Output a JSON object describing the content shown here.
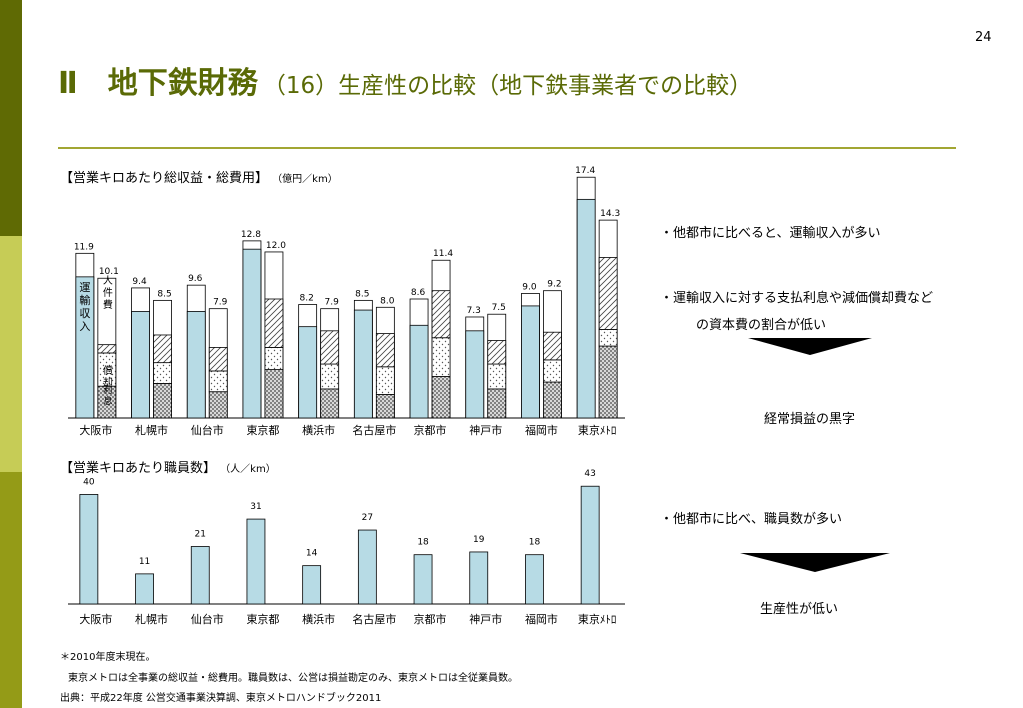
{
  "colors": {
    "sidebar": [
      "#5f6a04",
      "#c6cc56",
      "#949b17"
    ],
    "title": "#5a6a06",
    "rule": "#a2a632",
    "revenue_fill": "#b7dbe5",
    "bar_stroke": "#000000",
    "arrow": "#000000"
  },
  "slide": {
    "page_number": "24",
    "title_main": "Ⅱ　地下鉄財務",
    "title_sub": "（16）生産性の比較（地下鉄事業者での比較）"
  },
  "section1": {
    "title": "【営業キロあたり総収益・総費用】",
    "unit": "（億円／km）"
  },
  "section2": {
    "title": "【営業キロあたり職員数】",
    "unit": "（人／km）"
  },
  "notes": {
    "n1": "・他都市に比べると、運輸収入が多い",
    "n2a": "・運輸収入に対する支払利息や減価償却費など",
    "n2b": "の資本費の割合が低い",
    "r1": "経常損益の黒字",
    "n3": "・他都市に比べ、職員数が多い",
    "r2": "生産性が低い"
  },
  "footnotes": {
    "f1": "＊2010年度末現在。",
    "f2": "東京メトロは全事業の総収益・総費用。職員数は、公営は損益勘定のみ、東京メトロは全従業員数。",
    "f3": "出典：平成22年度 公営交通事業決算調、東京メトロハンドブック2011"
  },
  "chart_data": [
    {
      "type": "bar",
      "categories": [
        "大阪市",
        "札幌市",
        "仙台市",
        "東京都",
        "横浜市",
        "名古屋市",
        "京都市",
        "神戸市",
        "福岡市",
        "東京メトロ"
      ],
      "category_labels": [
        "大阪市",
        "札幌市",
        "仙台市",
        "東京都",
        "横浜市",
        "名古屋市",
        "京都市",
        "神戸市",
        "福岡市",
        "東京ﾒﾄﾛ"
      ],
      "series": [
        {
          "name": "総収益",
          "values": [
            11.9,
            9.4,
            9.6,
            12.8,
            8.2,
            8.5,
            8.6,
            7.3,
            9.0,
            17.4
          ],
          "revenue_component": [
            10.2,
            7.7,
            7.7,
            12.2,
            6.6,
            7.8,
            6.7,
            6.3,
            8.1,
            15.8
          ]
        },
        {
          "name": "総費用",
          "values": [
            10.1,
            8.5,
            7.9,
            12.0,
            7.9,
            8.0,
            11.4,
            7.5,
            9.2,
            14.3
          ],
          "components": {
            "personnel": [
              0.6,
              2.0,
              1.7,
              3.5,
              2.4,
              2.4,
              3.4,
              1.7,
              2.0,
              5.2
            ],
            "interest": [
              2.4,
              1.5,
              1.5,
              1.6,
              1.8,
              2.0,
              2.8,
              1.8,
              1.6,
              1.2
            ],
            "depreciation": [
              2.3,
              2.5,
              1.9,
              3.5,
              2.1,
              1.7,
              3.0,
              2.1,
              2.6,
              5.2
            ]
          }
        }
      ],
      "in_bar_labels": {
        "revenue": "運輸収入",
        "personnel": "人件費",
        "interest": "利息",
        "depreciation": "償却"
      },
      "value_labels_revenue": [
        "11.9",
        "9.4",
        "9.6",
        "12.8",
        "8.2",
        "8.5",
        "8.6",
        "7.3",
        "9.0",
        "17.4"
      ],
      "value_labels_cost": [
        "10.1",
        "8.5",
        "7.9",
        "12.0",
        "7.9",
        "8.0",
        "11.4",
        "7.5",
        "9.2",
        "14.3"
      ],
      "ylim": [
        0,
        18.5
      ],
      "title": "【営業キロあたり総収益・総費用】",
      "ylabel": "（億円／km）"
    },
    {
      "type": "bar",
      "categories": [
        "大阪市",
        "札幌市",
        "仙台市",
        "東京都",
        "横浜市",
        "名古屋市",
        "京都市",
        "神戸市",
        "福岡市",
        "東京メトロ"
      ],
      "category_labels": [
        "大阪市",
        "札幌市",
        "仙台市",
        "東京都",
        "横浜市",
        "名古屋市",
        "京都市",
        "神戸市",
        "福岡市",
        "東京ﾒﾄﾛ"
      ],
      "values": [
        40,
        11,
        21,
        31,
        14,
        27,
        18,
        19,
        18,
        43
      ],
      "value_labels": [
        "40",
        "11",
        "21",
        "31",
        "14",
        "27",
        "18",
        "19",
        "18",
        "43"
      ],
      "ylim": [
        0,
        46
      ],
      "title": "【営業キロあたり職員数】",
      "ylabel": "（人／km）"
    }
  ]
}
